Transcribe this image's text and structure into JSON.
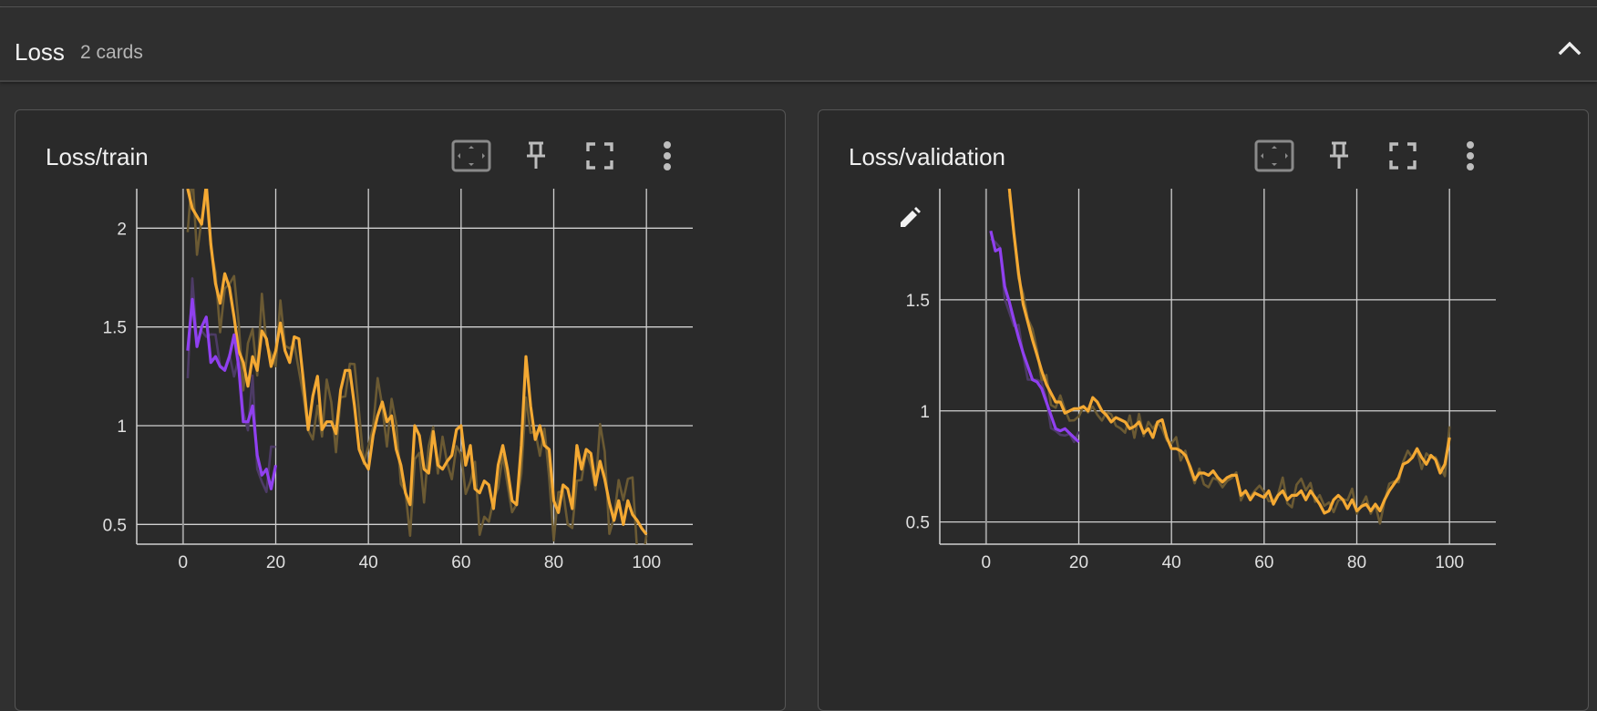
{
  "section": {
    "title": "Loss",
    "count": "2 cards"
  },
  "icons": {
    "collapse": "chevron-up-icon",
    "fit": "fit-to-domain-icon",
    "pin": "pin-icon",
    "fullscreen": "fullscreen-icon",
    "menu": "more-vert-icon",
    "edit": "pencil-icon"
  },
  "colors": {
    "orange": "#f4a933",
    "purple": "#9040f0",
    "orange_raw": "#6b5a33",
    "purple_raw": "#4d3b66"
  },
  "chart_data": [
    {
      "type": "line",
      "title": "Loss/train",
      "xlim": [
        -10,
        110
      ],
      "ylim": [
        0.4,
        2.2
      ],
      "xticks": [
        0,
        20,
        40,
        60,
        80,
        100
      ],
      "yticks": [
        0.5,
        1,
        1.5,
        2
      ],
      "ytick_labels": [
        "0.5",
        "1",
        "1.5",
        "2"
      ],
      "grid": true,
      "series": [
        {
          "color": "#f4a933",
          "x": [
            1,
            2,
            3,
            4,
            5,
            6,
            7,
            8,
            9,
            10,
            11,
            12,
            13,
            14,
            15,
            16,
            17,
            18,
            19,
            20,
            21,
            22,
            23,
            24,
            25,
            26,
            27,
            28,
            29,
            30,
            31,
            32,
            33,
            34,
            35,
            36,
            37,
            38,
            39,
            40,
            41,
            42,
            43,
            44,
            45,
            46,
            47,
            48,
            49,
            50,
            51,
            52,
            53,
            54,
            55,
            56,
            57,
            58,
            59,
            60,
            61,
            62,
            63,
            64,
            65,
            66,
            67,
            68,
            69,
            70,
            71,
            72,
            73,
            74,
            75,
            76,
            77,
            78,
            79,
            80,
            81,
            82,
            83,
            84,
            85,
            86,
            87,
            88,
            89,
            90,
            91,
            92,
            93,
            94,
            95,
            96,
            97,
            98,
            99,
            100
          ],
          "y": [
            2.2,
            2.1,
            2.06,
            2.02,
            2.22,
            1.92,
            1.72,
            1.62,
            1.77,
            1.7,
            1.55,
            1.38,
            1.32,
            1.2,
            1.35,
            1.28,
            1.48,
            1.44,
            1.3,
            1.38,
            1.52,
            1.38,
            1.32,
            1.45,
            1.44,
            1.22,
            0.98,
            1.15,
            1.25,
            0.98,
            1.02,
            1.02,
            0.96,
            1.18,
            1.28,
            1.28,
            1.1,
            0.88,
            0.82,
            0.78,
            0.95,
            1.05,
            1.12,
            1.02,
            1.05,
            0.88,
            0.8,
            0.66,
            0.6,
            1.0,
            0.95,
            0.78,
            0.76,
            0.97,
            0.8,
            0.78,
            0.82,
            0.85,
            0.98,
            1.0,
            0.8,
            0.9,
            0.68,
            0.66,
            0.72,
            0.7,
            0.58,
            0.8,
            0.9,
            0.78,
            0.62,
            0.6,
            0.9,
            1.35,
            1.1,
            0.93,
            1.0,
            0.9,
            0.88,
            0.62,
            0.56,
            0.7,
            0.68,
            0.58,
            0.9,
            0.78,
            0.88,
            0.86,
            0.7,
            0.82,
            0.73,
            0.61,
            0.52,
            0.62,
            0.5,
            0.62,
            0.55,
            0.52,
            0.48,
            0.45
          ]
        },
        {
          "color": "#9040f0",
          "x": [
            1,
            2,
            3,
            4,
            5,
            6,
            7,
            8,
            9,
            10,
            11,
            12,
            13,
            14,
            15,
            16,
            17,
            18,
            19,
            20
          ],
          "y": [
            1.38,
            1.64,
            1.4,
            1.5,
            1.55,
            1.32,
            1.35,
            1.3,
            1.28,
            1.35,
            1.46,
            1.3,
            1.02,
            1.02,
            1.1,
            0.85,
            0.75,
            0.78,
            0.68,
            0.8
          ]
        }
      ]
    },
    {
      "type": "line",
      "title": "Loss/validation",
      "xlim": [
        -10,
        110
      ],
      "ylim": [
        0.4,
        2.0
      ],
      "xticks": [
        0,
        20,
        40,
        60,
        80,
        100
      ],
      "yticks": [
        0.5,
        1,
        1.5
      ],
      "ytick_labels": [
        "0.5",
        "1",
        "1.5"
      ],
      "grid": true,
      "series": [
        {
          "color": "#f4a933",
          "x": [
            5,
            6,
            7,
            8,
            9,
            10,
            11,
            12,
            13,
            14,
            15,
            16,
            17,
            18,
            19,
            20,
            21,
            22,
            23,
            24,
            25,
            26,
            27,
            28,
            29,
            30,
            31,
            32,
            33,
            34,
            35,
            36,
            37,
            38,
            39,
            40,
            41,
            42,
            43,
            44,
            45,
            46,
            47,
            48,
            49,
            50,
            51,
            52,
            53,
            54,
            55,
            56,
            57,
            58,
            59,
            60,
            61,
            62,
            63,
            64,
            65,
            66,
            67,
            68,
            69,
            70,
            71,
            72,
            73,
            74,
            75,
            76,
            77,
            78,
            79,
            80,
            81,
            82,
            83,
            84,
            85,
            86,
            87,
            88,
            89,
            90,
            91,
            92,
            93,
            94,
            95,
            96,
            97,
            98,
            99,
            100
          ],
          "y": [
            2.0,
            1.8,
            1.62,
            1.48,
            1.4,
            1.32,
            1.25,
            1.18,
            1.12,
            1.08,
            1.04,
            1.04,
            0.99,
            1.0,
            1.01,
            1.01,
            1.02,
            1.0,
            1.06,
            1.04,
            1.0,
            0.98,
            0.95,
            0.97,
            0.96,
            0.95,
            0.92,
            0.93,
            0.95,
            0.9,
            0.92,
            0.88,
            0.95,
            0.96,
            0.88,
            0.83,
            0.83,
            0.82,
            0.8,
            0.75,
            0.69,
            0.72,
            0.72,
            0.71,
            0.73,
            0.7,
            0.68,
            0.7,
            0.71,
            0.71,
            0.62,
            0.64,
            0.6,
            0.63,
            0.62,
            0.61,
            0.64,
            0.58,
            0.62,
            0.64,
            0.6,
            0.62,
            0.62,
            0.64,
            0.6,
            0.64,
            0.61,
            0.58,
            0.54,
            0.55,
            0.6,
            0.62,
            0.6,
            0.56,
            0.6,
            0.55,
            0.57,
            0.58,
            0.55,
            0.58,
            0.55,
            0.6,
            0.64,
            0.67,
            0.7,
            0.76,
            0.77,
            0.79,
            0.83,
            0.79,
            0.76,
            0.8,
            0.78,
            0.72,
            0.76,
            0.88
          ]
        },
        {
          "color": "#9040f0",
          "x": [
            1,
            2,
            3,
            4,
            5,
            6,
            7,
            8,
            9,
            10,
            11,
            12,
            13,
            14,
            15,
            16,
            17,
            18,
            19,
            20
          ],
          "y": [
            1.81,
            1.72,
            1.73,
            1.56,
            1.49,
            1.41,
            1.33,
            1.26,
            1.2,
            1.14,
            1.13,
            1.1,
            1.04,
            0.98,
            0.92,
            0.91,
            0.92,
            0.9,
            0.88,
            0.86
          ]
        }
      ]
    }
  ]
}
